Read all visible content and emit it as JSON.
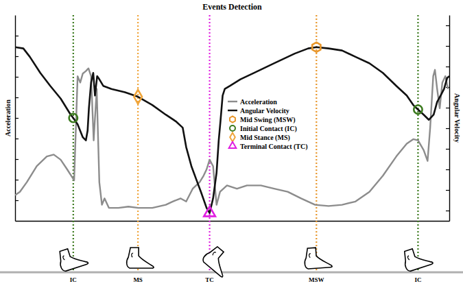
{
  "chart_data": {
    "type": "line",
    "title": "Events Detection",
    "y_label": "Acceleration",
    "y2_label": "Angular Velocity",
    "xlim": [
      0,
      100
    ],
    "ylim": [
      0,
      10
    ],
    "yticks": [
      1,
      2,
      3,
      4,
      5,
      6,
      7,
      8,
      9
    ],
    "y2lim": [
      0,
      10
    ],
    "y2ticks": [
      0.5,
      1.5,
      2.5,
      3.5,
      4.5,
      5.5,
      6.5,
      7.5,
      8.5,
      9.5
    ],
    "tick_labels": false,
    "grid": false,
    "legend": "center",
    "series": [
      {
        "name": "Acceleration",
        "color": "#8c8c8c",
        "x": [
          0,
          1.1,
          2.7,
          5.0,
          7.3,
          8.9,
          10.5,
          12.0,
          13.6,
          14.4,
          15.0,
          15.6,
          16.3,
          16.9,
          17.5,
          18.1,
          18.8,
          19.4,
          20.0,
          20.6,
          21.6,
          23.8,
          26.1,
          28.4,
          31.6,
          34.7,
          36.3,
          38.1,
          39.4,
          40.9,
          42.5,
          43.4,
          44.1,
          44.8,
          45.6,
          46.4,
          47.2,
          48.8,
          51.1,
          53.4,
          56.6,
          59.7,
          62.8,
          65.9,
          69.1,
          72.2,
          75.3,
          78.4,
          81.6,
          84.7,
          87.8,
          90.2,
          91.7,
          92.8,
          94.1,
          95.0,
          95.6,
          96.3,
          96.7,
          97.2,
          97.8,
          98.4,
          99.1,
          99.7
        ],
        "values": [
          1.25,
          1.41,
          1.88,
          2.66,
          3.13,
          3.22,
          2.97,
          2.5,
          1.97,
          7.03,
          6.72,
          7.16,
          7.28,
          7.41,
          7.03,
          3.91,
          6.41,
          1.88,
          0.78,
          1.09,
          0.63,
          0.63,
          0.69,
          0.63,
          0.63,
          0.78,
          0.94,
          1.09,
          0.94,
          1.56,
          1.88,
          2.19,
          2.5,
          2.97,
          2.66,
          0.78,
          1.41,
          1.72,
          1.56,
          1.72,
          1.72,
          1.56,
          1.41,
          1.09,
          0.78,
          0.72,
          0.78,
          0.94,
          1.41,
          2.19,
          3.13,
          3.75,
          3.97,
          3.91,
          3.44,
          2.91,
          4.53,
          7.03,
          7.34,
          6.41,
          5.47,
          6.72,
          7.03,
          6.41
        ]
      },
      {
        "name": "Angular Velocity",
        "color": "#111111",
        "axis": "y2",
        "x": [
          0,
          1.9,
          3.4,
          5.8,
          8.1,
          10.5,
          12.8,
          13.4,
          14.4,
          15.6,
          16.3,
          16.7,
          17.0,
          17.5,
          18.0,
          18.4,
          18.9,
          19.4,
          20.3,
          22.2,
          25.3,
          28.3,
          31.6,
          34.7,
          37.0,
          38.6,
          39.4,
          40.6,
          41.7,
          42.8,
          44.1,
          44.8,
          45.6,
          46.4,
          46.9,
          47.3,
          47.8,
          48.3,
          49.5,
          51.9,
          55.0,
          59.7,
          64.4,
          67.5,
          69.4,
          72.2,
          75.3,
          78.4,
          81.6,
          84.7,
          87.8,
          90.2,
          91.7,
          92.8,
          94.1,
          95.3,
          96.4,
          97.2,
          98.0,
          98.8,
          99.5,
          100
        ],
        "values": [
          8.44,
          8.38,
          7.97,
          7.19,
          6.56,
          5.94,
          5.16,
          5.0,
          4.69,
          4.06,
          3.91,
          4.38,
          5.47,
          6.72,
          7.19,
          6.09,
          7.03,
          6.88,
          6.56,
          6.41,
          6.25,
          6.03,
          5.63,
          5.16,
          4.84,
          4.53,
          3.59,
          2.66,
          2.03,
          1.41,
          0.63,
          0.38,
          1.09,
          2.34,
          3.91,
          4.84,
          6.09,
          6.41,
          6.56,
          6.88,
          7.19,
          7.66,
          8.13,
          8.38,
          8.44,
          8.38,
          8.28,
          7.97,
          7.66,
          7.19,
          6.56,
          6.09,
          5.63,
          5.41,
          5.16,
          4.91,
          5.16,
          5.78,
          6.09,
          6.41,
          6.94,
          7.03
        ]
      }
    ],
    "event_types": [
      {
        "name": "Mid Swing (MSW)",
        "color": "#e8962a",
        "marker": "hexagon"
      },
      {
        "name": "Initial Contact (IC)",
        "color": "#3b7a1e",
        "marker": "circle"
      },
      {
        "name": "Mid Stance (MS)",
        "color": "#f0a53a",
        "marker": "diamond"
      },
      {
        "name": "Terminal Contact (TC)",
        "color": "#e01ee0",
        "marker": "triangle"
      }
    ],
    "events": [
      {
        "label": "IC",
        "x": 13.4,
        "y": 5.0
      },
      {
        "label": "MS",
        "x": 28.3,
        "y": 6.03
      },
      {
        "label": "TC",
        "x": 44.8,
        "y": 0.38
      },
      {
        "label": "MSW",
        "x": 69.4,
        "y": 8.44
      },
      {
        "label": "IC",
        "x": 92.8,
        "y": 5.41
      }
    ]
  }
}
